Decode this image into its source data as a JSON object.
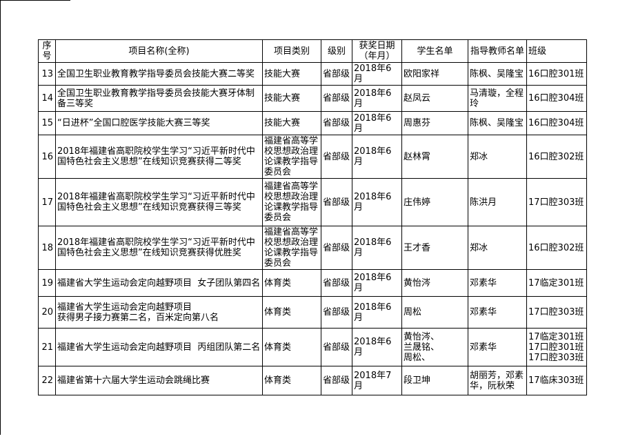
{
  "page": {
    "background": "#ffffff",
    "border_color": "#000000"
  },
  "table": {
    "columns": [
      {
        "key": "index",
        "label": "序号"
      },
      {
        "key": "name",
        "label": "项目名称(全称)"
      },
      {
        "key": "category",
        "label": "项目类别"
      },
      {
        "key": "level",
        "label": "级别"
      },
      {
        "key": "date",
        "label": "获奖日期\n（年月）"
      },
      {
        "key": "students",
        "label": "学生名单"
      },
      {
        "key": "teachers",
        "label": "指导教师名单"
      },
      {
        "key": "class",
        "label": "班级"
      }
    ],
    "rows": [
      {
        "index": "13",
        "name": "全国卫生职业教育教学指导委员会技能大赛二等奖",
        "category": "技能大赛",
        "level": "省部级",
        "date": "2018年6月",
        "students": "欧阳家祥",
        "teachers": "陈枫、吴隆宝",
        "class": "16口腔301班"
      },
      {
        "index": "14",
        "name": "全国卫生职业教育教学指导委员会技能大赛牙体制备三等奖",
        "category": "技能大赛",
        "level": "省部级",
        "date": "2018年6月",
        "students": "赵凤云",
        "teachers": "马清璇，全程玲",
        "class": "16口腔304班"
      },
      {
        "index": "15",
        "name": "“日进杯”全国口腔医学技能大赛三等奖",
        "category": "技能大赛",
        "level": "省部级",
        "date": "2018年6月",
        "students": "周惠芬",
        "teachers": "陈枫、吴隆宝",
        "class": "16口腔304班"
      },
      {
        "index": "16",
        "name": "2018年福建省高职院校学生学习“习近平新时代中国特色社会主义思想”在线知识竞赛获得二等奖",
        "category": "福建省高等学校思想政治理论课教学指导委员会",
        "level": "省部级",
        "date": "2018年6月",
        "students": "赵林霄",
        "teachers": "郑冰",
        "class": "16口腔302班"
      },
      {
        "index": "17",
        "name": "2018年福建省高职院校学生学习“习近平新时代中国特色社会主义思想”在线知识竞赛获得三等奖",
        "category": "福建省高等学校思想政治理论课教学指导委员会",
        "level": "省部级",
        "date": "2018年6月",
        "students": "庄伟婷",
        "teachers": "陈洪月",
        "class": "17口腔303班"
      },
      {
        "index": "18",
        "name": "2018年福建省高职院校学生学习“习近平新时代中国特色社会主义思想”在线知识竞赛获得优胜奖",
        "category": "福建省高等学校思想政治理论课教学指导委员会",
        "level": "省部级",
        "date": "2018年6月",
        "students": "王才香",
        "teachers": "郑冰",
        "class": "16口腔302班"
      },
      {
        "index": "19",
        "name": "福建省大学生运动会定向越野项目  女子团队第四名",
        "category": "体育类",
        "level": "省部级",
        "date": "2018年6月",
        "students": "黄怡涔",
        "teachers": "邓素华",
        "class": "17临定301班"
      },
      {
        "index": "20",
        "name": "福建省大学生运动会定向越野项目\n获得男子接力赛第二名，百米定向第八名",
        "category": "体育类",
        "level": "省部级",
        "date": "2018年6月",
        "students": "周松",
        "teachers": "邓素华",
        "class": "17口腔303班"
      },
      {
        "index": "21",
        "name": "福建省大学生运动会定向越野项目  丙组团队第二名",
        "category": "体育类",
        "level": "省部级",
        "date": "2018年6月",
        "students": "黄怡涔、\n兰晟铭、\n周松、",
        "teachers": "邓素华",
        "class": "17临定301班\n17口腔301班\n17口腔303班"
      },
      {
        "index": "22",
        "name": "福建省第十六届大学生运动会跳绳比赛",
        "category": "体育类",
        "level": "省部级",
        "date": "2018年7月",
        "students": "段卫坤",
        "teachers": "胡丽芳，邓素华，阮秋荣",
        "class": "17临床303班"
      }
    ]
  }
}
